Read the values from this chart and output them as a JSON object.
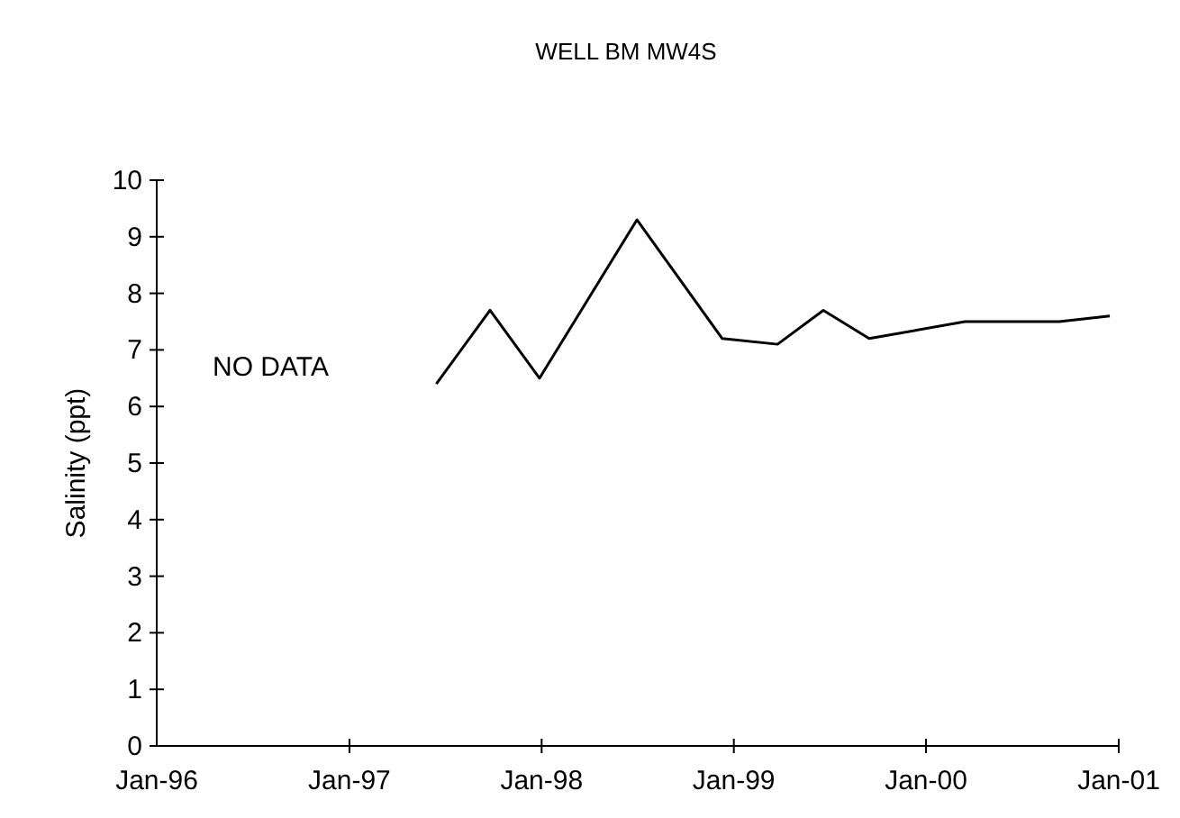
{
  "chart_data": {
    "type": "line",
    "title": "WELL BM MW4S",
    "ylabel": "Salinity (ppt)",
    "x": [
      "1997-06-15",
      "1997-09-25",
      "1997-12-28",
      "1998-07-01",
      "1998-12-10",
      "1999-03-25",
      "1999-06-20",
      "1999-09-15",
      "2000-03-15",
      "2000-09-10",
      "2000-12-15"
    ],
    "series": [
      {
        "color": "#000000",
        "values": [
          6.4,
          7.7,
          6.5,
          9.3,
          7.2,
          7.1,
          7.7,
          7.2,
          7.5,
          7.5,
          7.6
        ]
      }
    ],
    "xlim": [
      "1996-01",
      "2001-01"
    ],
    "xticks": [
      {
        "value": "1996-01",
        "label": "Jan-96"
      },
      {
        "value": "1997-01",
        "label": "Jan-97"
      },
      {
        "value": "1998-01",
        "label": "Jan-98"
      },
      {
        "value": "1999-01",
        "label": "Jan-99"
      },
      {
        "value": "2000-01",
        "label": "Jan-00"
      },
      {
        "value": "2001-01",
        "label": "Jan-01"
      }
    ],
    "ylim": [
      0,
      10
    ],
    "yticks": [
      0,
      1,
      2,
      3,
      4,
      5,
      6,
      7,
      8,
      9,
      10
    ],
    "annotations": [
      "NO DATA"
    ],
    "grid": false,
    "marker": "none",
    "line_style": "solid"
  }
}
